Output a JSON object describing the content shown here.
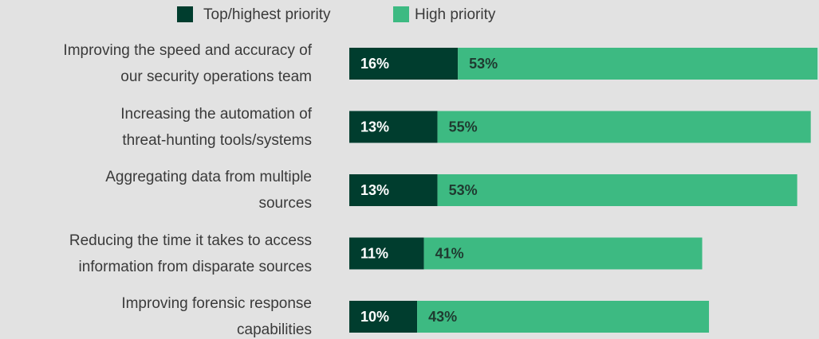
{
  "chart_data": {
    "type": "stacked_bar",
    "orientation": "horizontal",
    "categories": [
      "Improving the speed and accuracy of\nour security operations team",
      "Increasing the automation of\nthreat-hunting tools/systems",
      "Aggregating data from multiple\nsources",
      "Reducing the time it takes to access\ninformation from disparate sources",
      "Improving forensic response\ncapabilities"
    ],
    "series": [
      {
        "name": "Top/highest priority",
        "color": "#003d2e",
        "values": [
          16,
          13,
          13,
          11,
          10
        ],
        "value_labels": [
          "16%",
          "13%",
          "13%",
          "11%",
          "10%"
        ]
      },
      {
        "name": "High priority",
        "color": "#3dba82",
        "values": [
          53,
          55,
          53,
          41,
          43
        ],
        "value_labels": [
          "53%",
          "55%",
          "53%",
          "41%",
          "43%"
        ]
      }
    ],
    "legend": "top"
  }
}
